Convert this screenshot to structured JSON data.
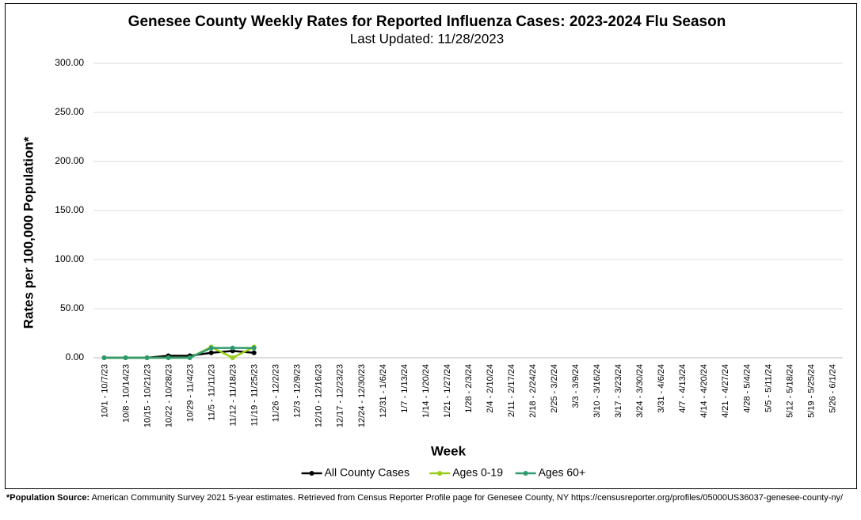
{
  "chart_data": {
    "type": "line",
    "title": "Genesee County Weekly Rates for Reported Influenza Cases: 2023-2024 Flu Season",
    "subtitle": "Last Updated: 11/28/2023",
    "x_label": "Week",
    "y_label": "Rates per 100,000 Population*",
    "categories": [
      "10/1 - 10/7/23",
      "10/8 - 10/14/23",
      "10/15 - 10/21/23",
      "10/22 - 10/28/23",
      "10/29 - 11/4/23",
      "11/5 - 11/11/23",
      "11/12 - 11/18/23",
      "11/19 - 11/25/23",
      "11/26 - 12/2/23",
      "12/3 - 12/9/23",
      "12/10 - 12/16/23",
      "12/17 - 12/23/23",
      "12/24 - 12/30/23",
      "12/31 - 1/6/24",
      "1/7 - 1/13/24",
      "1/14 - 1/20/24",
      "1/21 - 1/27/24",
      "1/28 - 2/3/24",
      "2/4 - 2/10/24",
      "2/11 - 2/17/24",
      "2/18 - 2/24/24",
      "2/25 - 3/2/24",
      "3/3 - 3/9/24",
      "3/10 - 3/16/24",
      "3/17 - 3/23/24",
      "3/24 - 3/30/24",
      "3/31 - 4/6/24",
      "4/7 - 4/13/24",
      "4/14 - 4/20/24",
      "4/21 - 4/27/24",
      "4/28 - 5/4/24",
      "5/5 - 5/11/24",
      "5/12 - 5/18/24",
      "5/19 - 5/25/24",
      "5/26 - 6/1/24"
    ],
    "series": [
      {
        "name": "All County Cases",
        "color": "#000000",
        "values": [
          0,
          0,
          0,
          2,
          2,
          5,
          7,
          5,
          null,
          null,
          null,
          null,
          null,
          null,
          null,
          null,
          null,
          null,
          null,
          null,
          null,
          null,
          null,
          null,
          null,
          null,
          null,
          null,
          null,
          null,
          null,
          null,
          null,
          null,
          null
        ]
      },
      {
        "name": "Ages 0-19",
        "color": "#9acd1a",
        "values": [
          0,
          0,
          0,
          0,
          0,
          11,
          0,
          11,
          null,
          null,
          null,
          null,
          null,
          null,
          null,
          null,
          null,
          null,
          null,
          null,
          null,
          null,
          null,
          null,
          null,
          null,
          null,
          null,
          null,
          null,
          null,
          null,
          null,
          null,
          null
        ]
      },
      {
        "name": "Ages 60+",
        "color": "#2e9a6e",
        "values": [
          0,
          0,
          0,
          0,
          0,
          10,
          10,
          10,
          null,
          null,
          null,
          null,
          null,
          null,
          null,
          null,
          null,
          null,
          null,
          null,
          null,
          null,
          null,
          null,
          null,
          null,
          null,
          null,
          null,
          null,
          null,
          null,
          null,
          null,
          null
        ]
      }
    ],
    "ylim": [
      0,
      300
    ],
    "yticks": [
      {
        "value": 0,
        "label": "0.00"
      },
      {
        "value": 50,
        "label": "50.00"
      },
      {
        "value": 100,
        "label": "100.00"
      },
      {
        "value": 150,
        "label": "150.00"
      },
      {
        "value": 200,
        "label": "200.00"
      },
      {
        "value": 250,
        "label": "250.00"
      },
      {
        "value": 300,
        "label": "300.00"
      }
    ],
    "grid": true,
    "legend": "bottom"
  },
  "footnote": {
    "label": "*Population Source:",
    "text": "American Community Survey 2021 5-year estimates. Retrieved from Census Reporter Profile page for Genesee County, NY https://censusreporter.org/profiles/05000US36037-genesee-county-ny/"
  }
}
